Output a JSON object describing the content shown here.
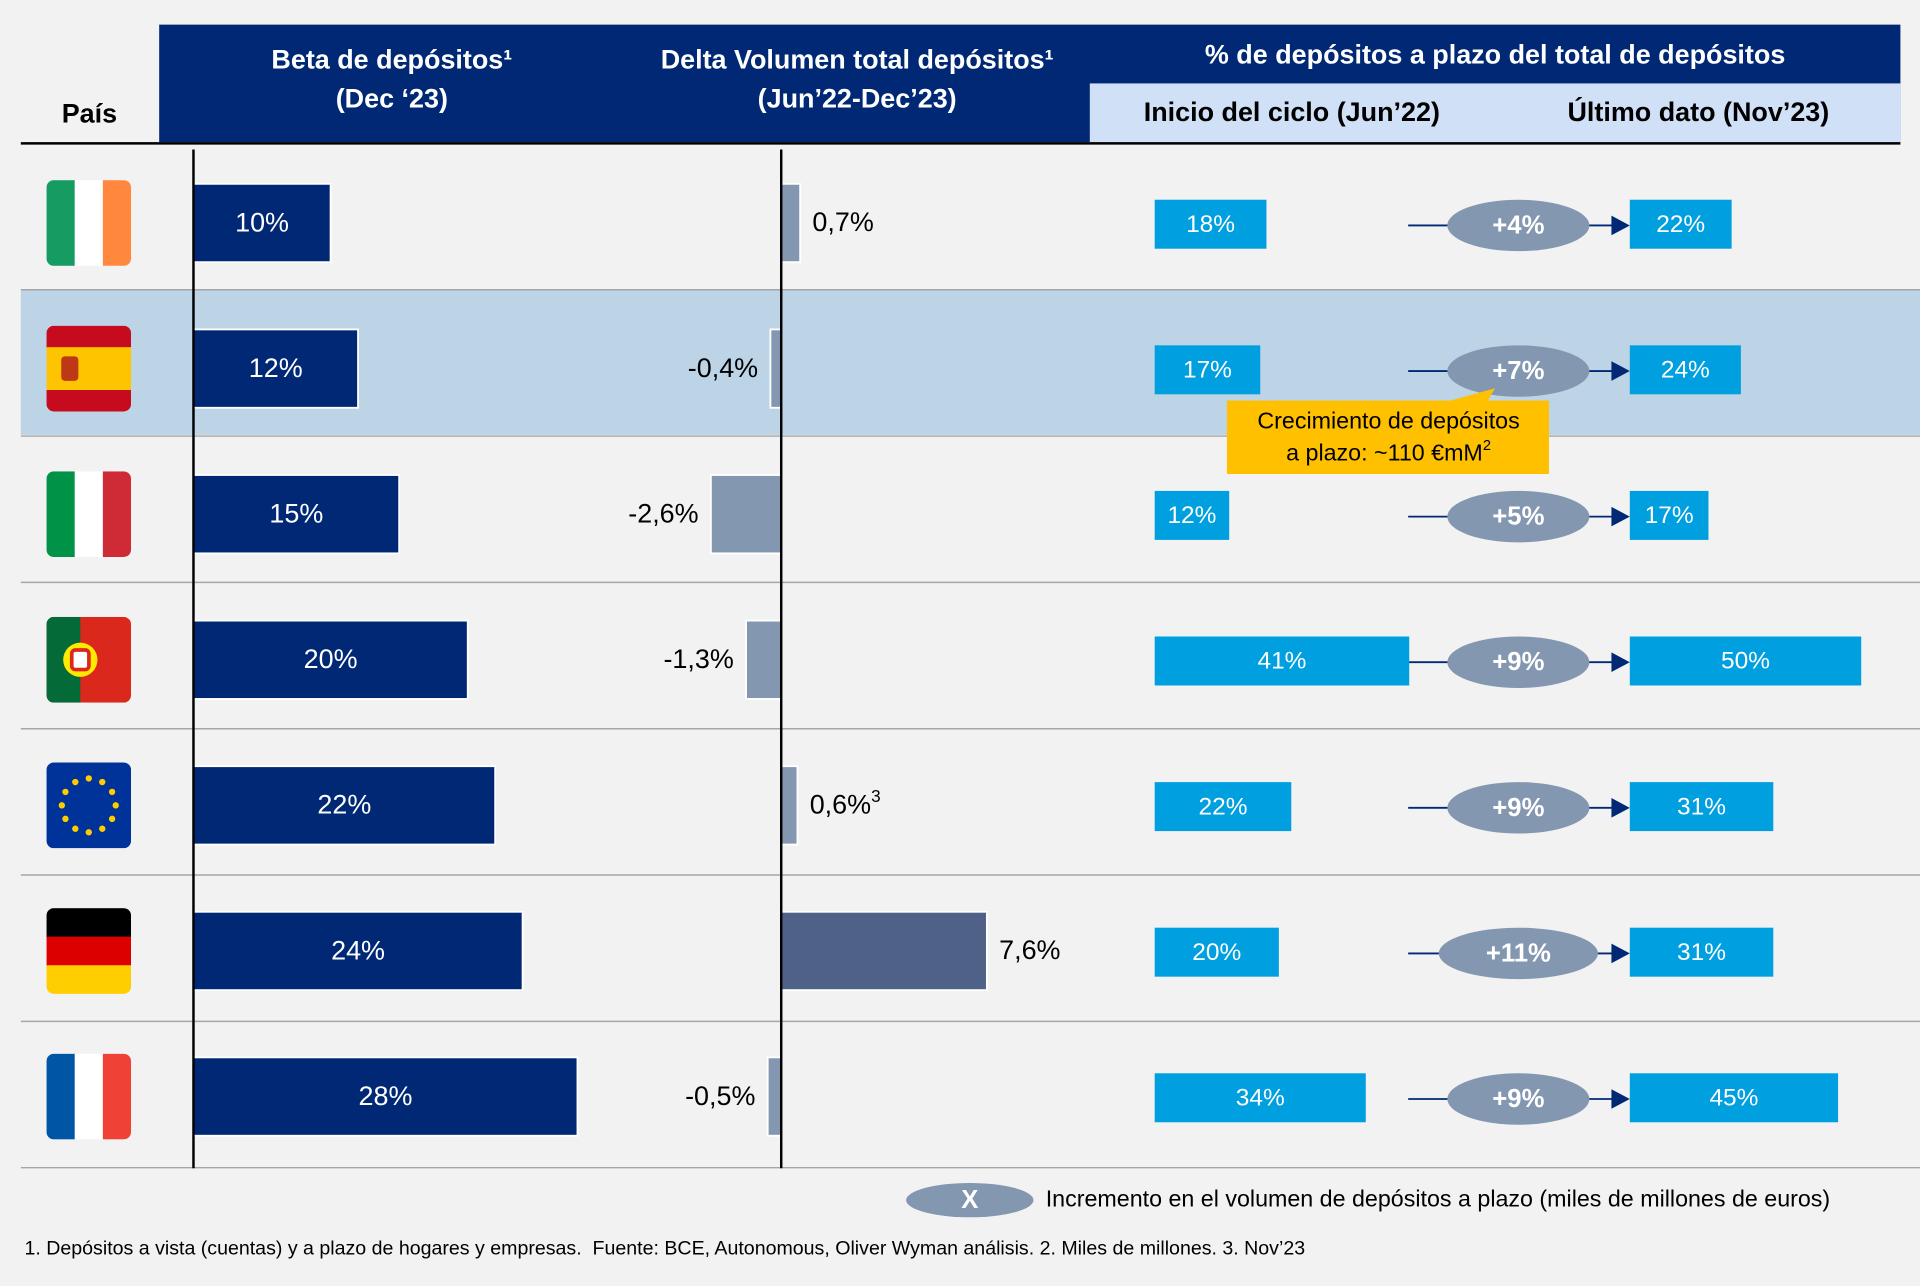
{
  "header": {
    "country": "País",
    "beta_title": "Beta de depósitos¹",
    "beta_period": "(Dec ‘23)",
    "delta_title": "Delta Volumen total depósitos¹",
    "delta_period": "(Jun’22-Dec’23)",
    "term_title": "% de depósitos a plazo del total de depósitos",
    "term_start": "Inicio del ciclo (Jun’22)",
    "term_end": "Último dato (Nov’23)"
  },
  "rows": [
    {
      "beta": 10,
      "beta_label": "10%",
      "delta": 0.7,
      "delta_label": "0,7%",
      "start": 18,
      "start_label": "18%",
      "end": 22,
      "end_label": "22%",
      "increase": 4,
      "increase_label": "+4%"
    },
    {
      "beta": 12,
      "beta_label": "12%",
      "delta": -0.4,
      "delta_label": "-0,4%",
      "start": 17,
      "start_label": "17%",
      "end": 24,
      "end_label": "24%",
      "increase": 7,
      "increase_label": "+7%"
    },
    {
      "beta": 15,
      "beta_label": "15%",
      "delta": -2.6,
      "delta_label": "-2,6%",
      "start": 12,
      "start_label": "12%",
      "end": 17,
      "end_label": "17%",
      "increase": 5,
      "increase_label": "+5%"
    },
    {
      "beta": 20,
      "beta_label": "20%",
      "delta": -1.3,
      "delta_label": "-1,3%",
      "start": 41,
      "start_label": "41%",
      "end": 50,
      "end_label": "50%",
      "increase": 9,
      "increase_label": "+9%"
    },
    {
      "beta": 22,
      "beta_label": "22%",
      "delta": 0.6,
      "delta_label": "0,6%",
      "delta_note": "3",
      "start": 22,
      "start_label": "22%",
      "end": 31,
      "end_label": "31%",
      "increase": 9,
      "increase_label": "+9%"
    },
    {
      "beta": 24,
      "beta_label": "24%",
      "delta": 7.6,
      "delta_label": "7,6%",
      "start": 20,
      "start_label": "20%",
      "end": 31,
      "end_label": "31%",
      "increase": 11,
      "increase_label": "+11%"
    },
    {
      "beta": 28,
      "beta_label": "28%",
      "delta": -0.5,
      "delta_label": "-0,5%",
      "start": 34,
      "start_label": "34%",
      "end": 45,
      "end_label": "45%",
      "increase": 9,
      "increase_label": "+9%"
    }
  ],
  "callout": {
    "line1": "Crecimiento de depósitos",
    "line2": "a plazo: ~110 €mM",
    "note": "2"
  },
  "legend": {
    "symbol": "X",
    "text": "Incremento en el volumen de depósitos a plazo (miles de millones de euros)"
  },
  "footnote": "1. Depósitos a vista (cuentas) y a plazo de hogares y empresas.  Fuente: BCE, Autonomous, Oliver Wyman análisis. 2. Miles de millones. 3. Nov’23"
}
